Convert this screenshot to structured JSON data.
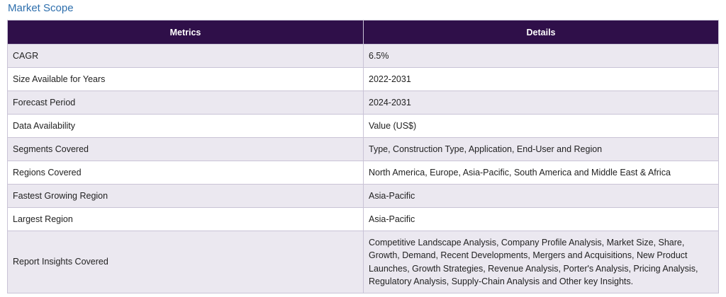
{
  "section": {
    "title": "Market Scope"
  },
  "table": {
    "headers": [
      "Metrics",
      "Details"
    ],
    "rows": [
      {
        "metric": "CAGR",
        "detail": "6.5%"
      },
      {
        "metric": "Size Available for Years",
        "detail": "2022-2031"
      },
      {
        "metric": "Forecast Period",
        "detail": "2024-2031"
      },
      {
        "metric": "Data Availability",
        "detail": "Value (US$)"
      },
      {
        "metric": "Segments Covered",
        "detail": "Type, Construction Type, Application, End-User and Region"
      },
      {
        "metric": "Regions Covered",
        "detail": "North America, Europe, Asia-Pacific, South America and Middle East & Africa"
      },
      {
        "metric": "Fastest Growing Region",
        "detail": "Asia-Pacific"
      },
      {
        "metric": "Largest Region",
        "detail": "Asia-Pacific"
      },
      {
        "metric": "Report Insights Covered",
        "detail": "Competitive Landscape Analysis, Company Profile Analysis, Market Size, Share, Growth, Demand, Recent Developments, Mergers and Acquisitions, New Product Launches, Growth Strategies, Revenue Analysis, Porter's Analysis, Pricing Analysis, Regulatory Analysis, Supply-Chain Analysis and Other key Insights."
      }
    ]
  },
  "colors": {
    "header_bg": "#2f0f49",
    "header_text": "#ffffff",
    "row_alt_bg": "#ebe8f0",
    "border": "#c9c3d6",
    "title_text": "#2e6fad"
  }
}
